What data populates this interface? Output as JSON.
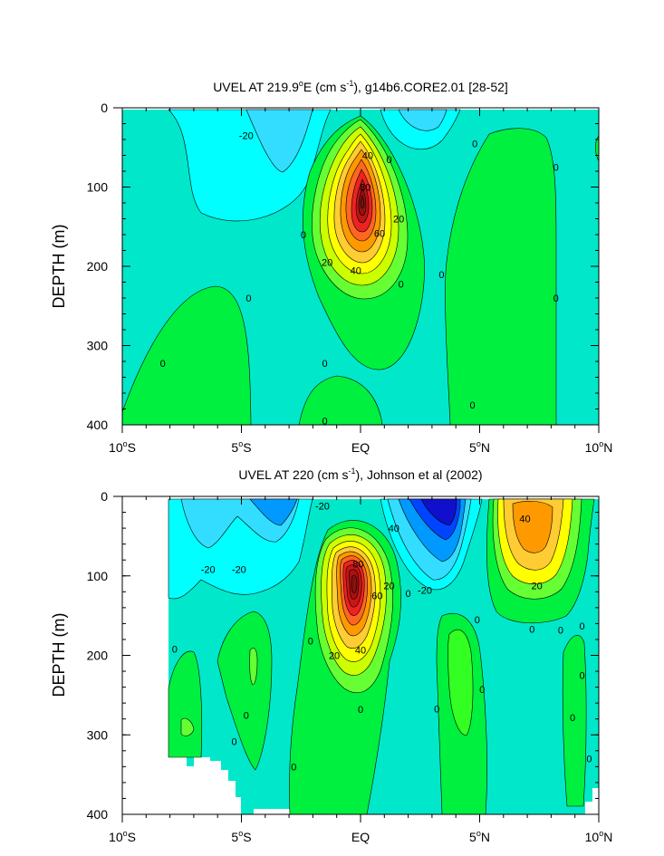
{
  "chart_data": [
    {
      "type": "contour",
      "title_main": "UVEL AT 219.9",
      "title_sup": "o",
      "title_mid": "E (cm s",
      "title_sup2": "-1",
      "title_end": "), g14b6.CORE2.01 [28-52]",
      "ylabel": "DEPTH (m)",
      "xlim": [
        -10,
        10
      ],
      "ylim": [
        0,
        400
      ],
      "y_inverted": true,
      "y_ticks": [
        "0",
        "100",
        "200",
        "300",
        "400"
      ],
      "x_ticks": [
        {
          "v": -10,
          "num": "10",
          "deg": "o",
          "hemi": "S"
        },
        {
          "v": -5,
          "num": "5",
          "deg": "o",
          "hemi": "S"
        },
        {
          "v": 0,
          "num": "EQ",
          "deg": "",
          "hemi": ""
        },
        {
          "v": 5,
          "num": "5",
          "deg": "o",
          "hemi": "N"
        },
        {
          "v": 10,
          "num": "10",
          "deg": "o",
          "hemi": "N"
        }
      ],
      "contour_labels": [
        {
          "x": -4.8,
          "y": 35,
          "text": "-20"
        },
        {
          "x": 0.3,
          "y": 60,
          "text": "40"
        },
        {
          "x": 0.2,
          "y": 100,
          "text": "80"
        },
        {
          "x": 1.6,
          "y": 140,
          "text": "20"
        },
        {
          "x": 0.8,
          "y": 158,
          "text": "60"
        },
        {
          "x": -1.4,
          "y": 195,
          "text": "20"
        },
        {
          "x": -0.2,
          "y": 205,
          "text": "40"
        },
        {
          "x": 1.2,
          "y": 65,
          "text": "0"
        },
        {
          "x": 4.8,
          "y": 45,
          "text": "0"
        },
        {
          "x": 8.2,
          "y": 75,
          "text": "0"
        },
        {
          "x": -2.4,
          "y": 160,
          "text": "0"
        },
        {
          "x": 3.4,
          "y": 210,
          "text": "0"
        },
        {
          "x": 1.7,
          "y": 222,
          "text": "0"
        },
        {
          "x": -4.7,
          "y": 240,
          "text": "0"
        },
        {
          "x": 8.2,
          "y": 240,
          "text": "0"
        },
        {
          "x": -8.3,
          "y": 322,
          "text": "0"
        },
        {
          "x": -1.5,
          "y": 322,
          "text": "0"
        },
        {
          "x": 4.7,
          "y": 375,
          "text": "0"
        },
        {
          "x": -1.5,
          "y": 395,
          "text": "0"
        }
      ]
    },
    {
      "type": "contour",
      "title_main": "UVEL AT 220 (cm s",
      "title_sup": "-1",
      "title_end": "), Johnson et al (2002)",
      "ylabel": "DEPTH (m)",
      "xlim": [
        -10,
        10
      ],
      "ylim": [
        0,
        400
      ],
      "y_inverted": true,
      "y_ticks": [
        "0",
        "100",
        "200",
        "300",
        "400"
      ],
      "x_ticks": [
        {
          "v": -10,
          "num": "10",
          "deg": "o",
          "hemi": "S"
        },
        {
          "v": -5,
          "num": "5",
          "deg": "o",
          "hemi": "S"
        },
        {
          "v": 0,
          "num": "EQ",
          "deg": "",
          "hemi": ""
        },
        {
          "v": 5,
          "num": "5",
          "deg": "o",
          "hemi": "N"
        },
        {
          "v": 10,
          "num": "10",
          "deg": "o",
          "hemi": "N"
        }
      ],
      "contour_labels": [
        {
          "x": -1.6,
          "y": 12,
          "text": "-20"
        },
        {
          "x": 1.4,
          "y": 40,
          "text": "40"
        },
        {
          "x": 6.9,
          "y": 28,
          "text": "40"
        },
        {
          "x": -6.4,
          "y": 92,
          "text": "-20"
        },
        {
          "x": -5.1,
          "y": 92,
          "text": "-20"
        },
        {
          "x": -0.1,
          "y": 85,
          "text": "80"
        },
        {
          "x": 1.2,
          "y": 112,
          "text": "20"
        },
        {
          "x": 0.7,
          "y": 125,
          "text": "60"
        },
        {
          "x": 2.7,
          "y": 118,
          "text": "-20"
        },
        {
          "x": 2.0,
          "y": 122,
          "text": "0"
        },
        {
          "x": 7.4,
          "y": 112,
          "text": "20"
        },
        {
          "x": 4.9,
          "y": 155,
          "text": "0"
        },
        {
          "x": 8.4,
          "y": 168,
          "text": "0"
        },
        {
          "x": 7.2,
          "y": 167,
          "text": "0"
        },
        {
          "x": 9.3,
          "y": 163,
          "text": "0"
        },
        {
          "x": -2.1,
          "y": 182,
          "text": "0"
        },
        {
          "x": -1.1,
          "y": 200,
          "text": "20"
        },
        {
          "x": 0.0,
          "y": 193,
          "text": "40"
        },
        {
          "x": -7.8,
          "y": 192,
          "text": "0"
        },
        {
          "x": 0.0,
          "y": 268,
          "text": "0"
        },
        {
          "x": 5.1,
          "y": 243,
          "text": "0"
        },
        {
          "x": 9.3,
          "y": 225,
          "text": "0"
        },
        {
          "x": 3.2,
          "y": 267,
          "text": "0"
        },
        {
          "x": -4.8,
          "y": 275,
          "text": "0"
        },
        {
          "x": 8.9,
          "y": 278,
          "text": "0"
        },
        {
          "x": -5.3,
          "y": 308,
          "text": "0"
        },
        {
          "x": 9.6,
          "y": 330,
          "text": "0"
        },
        {
          "x": -2.8,
          "y": 340,
          "text": "0"
        }
      ]
    }
  ]
}
